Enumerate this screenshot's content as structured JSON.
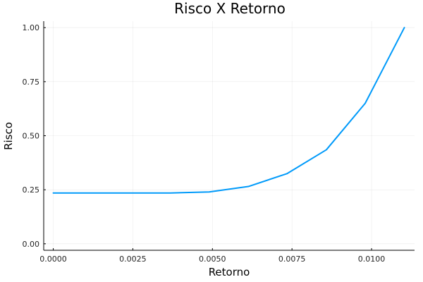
{
  "chart_data": {
    "type": "line",
    "title": "Risco X Retorno",
    "xlabel": "Retorno",
    "ylabel": "Risco",
    "xlim": [
      -0.0003,
      0.01135
    ],
    "ylim": [
      -0.03,
      1.03
    ],
    "xticks": [
      0.0,
      0.0025,
      0.005,
      0.0075,
      0.01
    ],
    "xtick_labels": [
      "0.0000",
      "0.0025",
      "0.0050",
      "0.0075",
      "0.0100"
    ],
    "yticks": [
      0.0,
      0.25,
      0.5,
      0.75,
      1.0
    ],
    "ytick_labels": [
      "0.00",
      "0.25",
      "0.50",
      "0.75",
      "1.00"
    ],
    "grid": true,
    "legend": "none",
    "series": [
      {
        "color": "#009AFA",
        "x": [
          0.0,
          0.00123,
          0.00245,
          0.00368,
          0.0049,
          0.00613,
          0.00735,
          0.00858,
          0.0098,
          0.01103
        ],
        "y": [
          0.235,
          0.235,
          0.235,
          0.235,
          0.24,
          0.265,
          0.325,
          0.435,
          0.65,
          1.0
        ]
      }
    ]
  }
}
